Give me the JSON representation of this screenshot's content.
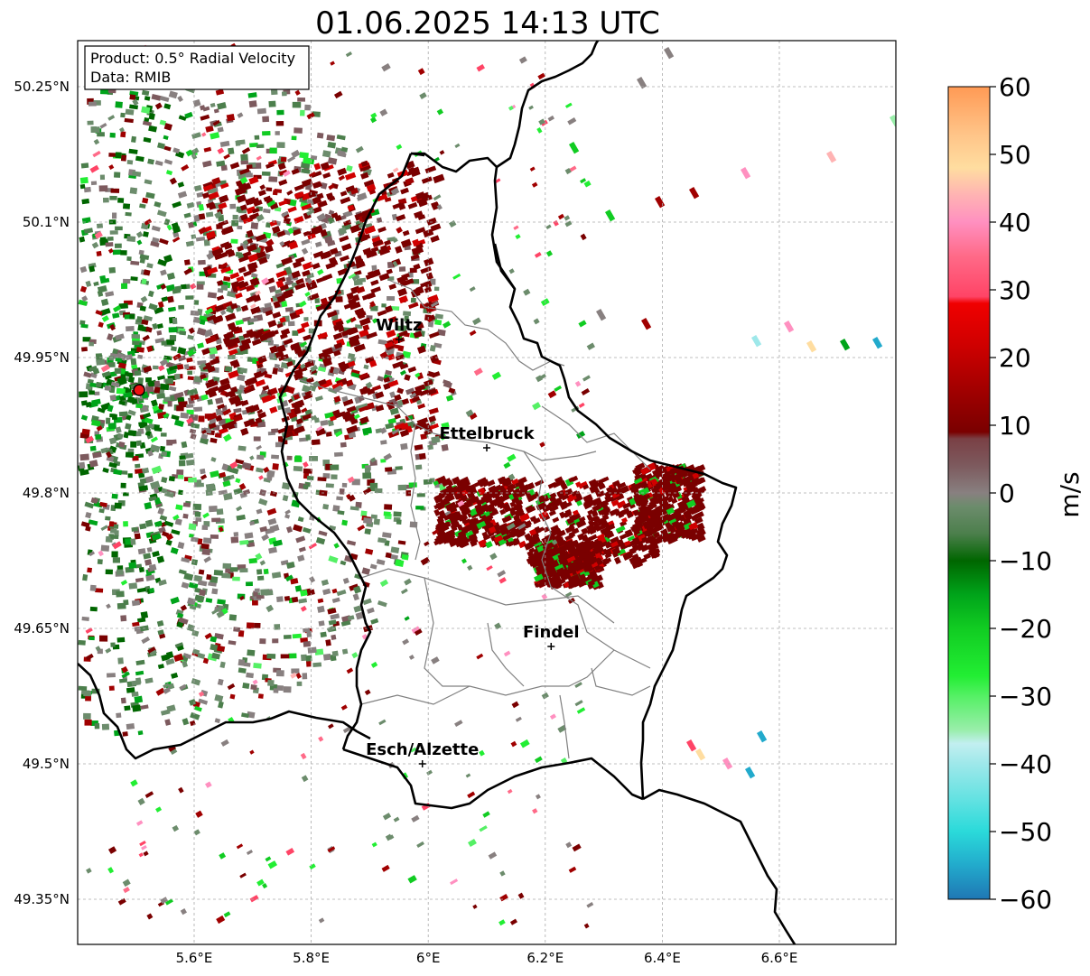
{
  "title": "01.06.2025 14:13 UTC",
  "info_box": {
    "product": "Product: 0.5° Radial Velocity",
    "data": "Data: RMIB"
  },
  "map": {
    "lon_range": [
      5.4,
      6.8
    ],
    "lat_range": [
      49.3,
      50.3
    ],
    "lon_ticks": [
      {
        "value": 5.6,
        "label": "5.6°E"
      },
      {
        "value": 5.8,
        "label": "5.8°E"
      },
      {
        "value": 6.0,
        "label": "6°E"
      },
      {
        "value": 6.2,
        "label": "6.2°E"
      },
      {
        "value": 6.4,
        "label": "6.4°E"
      },
      {
        "value": 6.6,
        "label": "6.6°E"
      }
    ],
    "lat_ticks": [
      {
        "value": 50.25,
        "label": "50.25°N"
      },
      {
        "value": 50.1,
        "label": "50.1°N"
      },
      {
        "value": 49.95,
        "label": "49.95°N"
      },
      {
        "value": 49.8,
        "label": "49.8°N"
      },
      {
        "value": 49.65,
        "label": "49.65°N"
      },
      {
        "value": 49.5,
        "label": "49.5°N"
      },
      {
        "value": 49.35,
        "label": "49.35°N"
      }
    ],
    "grid": true,
    "radar_site": {
      "lon": 5.506,
      "lat": 49.914
    },
    "cities": [
      {
        "name": "Wiltz",
        "lon": 5.95,
        "lat": 49.97
      },
      {
        "name": "Ettelbruck",
        "lon": 6.1,
        "lat": 49.85
      },
      {
        "name": "Findel",
        "lon": 6.21,
        "lat": 49.63
      },
      {
        "name": "Esch/Alzette",
        "lon": 5.99,
        "lat": 49.5
      }
    ]
  },
  "colorbar": {
    "label": "m/s",
    "min": -60,
    "max": 60,
    "ticks": [
      {
        "value": 60,
        "label": "60"
      },
      {
        "value": 50,
        "label": "50"
      },
      {
        "value": 40,
        "label": "40"
      },
      {
        "value": 30,
        "label": "30"
      },
      {
        "value": 20,
        "label": "20"
      },
      {
        "value": 10,
        "label": "10"
      },
      {
        "value": 0,
        "label": "0"
      },
      {
        "value": -10,
        "label": "−10"
      },
      {
        "value": -20,
        "label": "−20"
      },
      {
        "value": -30,
        "label": "−30"
      },
      {
        "value": -40,
        "label": "−40"
      },
      {
        "value": -50,
        "label": "−50"
      },
      {
        "value": -60,
        "label": "−60"
      }
    ],
    "color_stops": [
      {
        "value": -60,
        "color": "#1f77b4"
      },
      {
        "value": -55,
        "color": "#22aacc"
      },
      {
        "value": -50,
        "color": "#2adada"
      },
      {
        "value": -45,
        "color": "#66e2e2"
      },
      {
        "value": -40,
        "color": "#9ee8ea"
      },
      {
        "value": -37,
        "color": "#c2eff0"
      },
      {
        "value": -35,
        "color": "#99eeaa"
      },
      {
        "value": -30,
        "color": "#55f065"
      },
      {
        "value": -27,
        "color": "#22ee33"
      },
      {
        "value": -20,
        "color": "#11cc22"
      },
      {
        "value": -15,
        "color": "#00a41a"
      },
      {
        "value": -10,
        "color": "#006600"
      },
      {
        "value": -6,
        "color": "#4c7f4c"
      },
      {
        "value": -2,
        "color": "#6c8c6c"
      },
      {
        "value": 0,
        "color": "#888080"
      },
      {
        "value": 4,
        "color": "#7d5a5e"
      },
      {
        "value": 8,
        "color": "#7a4045"
      },
      {
        "value": 9,
        "color": "#7a0000"
      },
      {
        "value": 15,
        "color": "#a00000"
      },
      {
        "value": 22,
        "color": "#d00000"
      },
      {
        "value": 28,
        "color": "#f00000"
      },
      {
        "value": 29,
        "color": "#ff4466"
      },
      {
        "value": 35,
        "color": "#ff6a88"
      },
      {
        "value": 40,
        "color": "#ff90c0"
      },
      {
        "value": 44,
        "color": "#ffb3b3"
      },
      {
        "value": 48,
        "color": "#ffdda0"
      },
      {
        "value": 53,
        "color": "#ffc488"
      },
      {
        "value": 60,
        "color": "#ff9a55"
      }
    ]
  }
}
